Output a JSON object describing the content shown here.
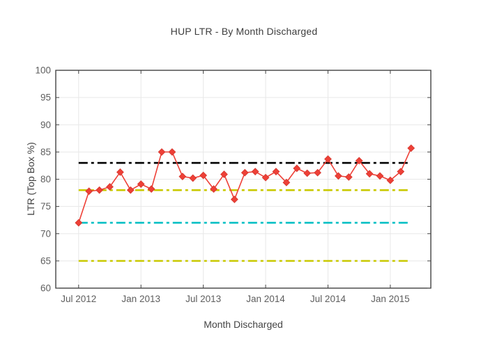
{
  "title": "HUP LTR - By Month Discharged",
  "chart_data": {
    "type": "line",
    "title": "HUP LTR - By Month Discharged",
    "xlabel": "Month Discharged",
    "ylabel": "LTR (Top Box %)",
    "ylim": [
      60,
      100
    ],
    "y_ticks": [
      60,
      65,
      70,
      75,
      80,
      85,
      90,
      95,
      100
    ],
    "x_tick_labels": [
      "Jul 2012",
      "Jan 2013",
      "Jul 2013",
      "Jan 2014",
      "Jul 2014",
      "Jan 2015"
    ],
    "x_tick_month_index": [
      0,
      6,
      12,
      18,
      24,
      30
    ],
    "x_range_month_index": [
      -2.2,
      33.9
    ],
    "grid": true,
    "legend": "none",
    "categories": [
      "Jul 2012",
      "Aug 2012",
      "Sep 2012",
      "Oct 2012",
      "Nov 2012",
      "Dec 2012",
      "Jan 2013",
      "Feb 2013",
      "Mar 2013",
      "Apr 2013",
      "May 2013",
      "Jun 2013",
      "Jul 2013",
      "Aug 2013",
      "Sep 2013",
      "Oct 2013",
      "Nov 2013",
      "Dec 2013",
      "Jan 2014",
      "Feb 2014",
      "Mar 2014",
      "Apr 2014",
      "May 2014",
      "Jun 2014",
      "Jul 2014",
      "Aug 2014",
      "Sep 2014",
      "Oct 2014",
      "Nov 2014",
      "Dec 2014",
      "Jan 2015",
      "Feb 2015",
      "Mar 2015"
    ],
    "series": [
      {
        "name": "LTR (Top Box %)",
        "mode": "line+markers",
        "marker": "diamond",
        "color": "#ee4037",
        "marker_edge_color": "#d93a31",
        "values": [
          72.0,
          77.8,
          78.0,
          78.6,
          81.3,
          78.0,
          79.1,
          78.2,
          85.0,
          85.0,
          80.5,
          80.2,
          80.7,
          78.2,
          80.9,
          76.3,
          81.2,
          81.4,
          80.3,
          81.4,
          79.4,
          82.0,
          81.1,
          81.2,
          83.7,
          80.6,
          80.4,
          83.4,
          81.0,
          80.6,
          79.8,
          81.4,
          85.7
        ]
      }
    ],
    "reference_lines": [
      {
        "name": "benchmark-83",
        "value": 83,
        "color": "#000000",
        "style": "dash-dot"
      },
      {
        "name": "benchmark-78",
        "value": 78,
        "color": "#c9c900",
        "style": "dash-dot"
      },
      {
        "name": "benchmark-72",
        "value": 72,
        "color": "#00bfc4",
        "style": "dash-dot"
      },
      {
        "name": "benchmark-65",
        "value": 65,
        "color": "#c9c900",
        "style": "dash-dot"
      }
    ]
  },
  "style": {
    "plot_border_color": "#333333",
    "gridline_color": "#e8e8e8",
    "tick_color": "#444444",
    "tick_label_color": "#5e5e5e",
    "background": "#ffffff"
  }
}
